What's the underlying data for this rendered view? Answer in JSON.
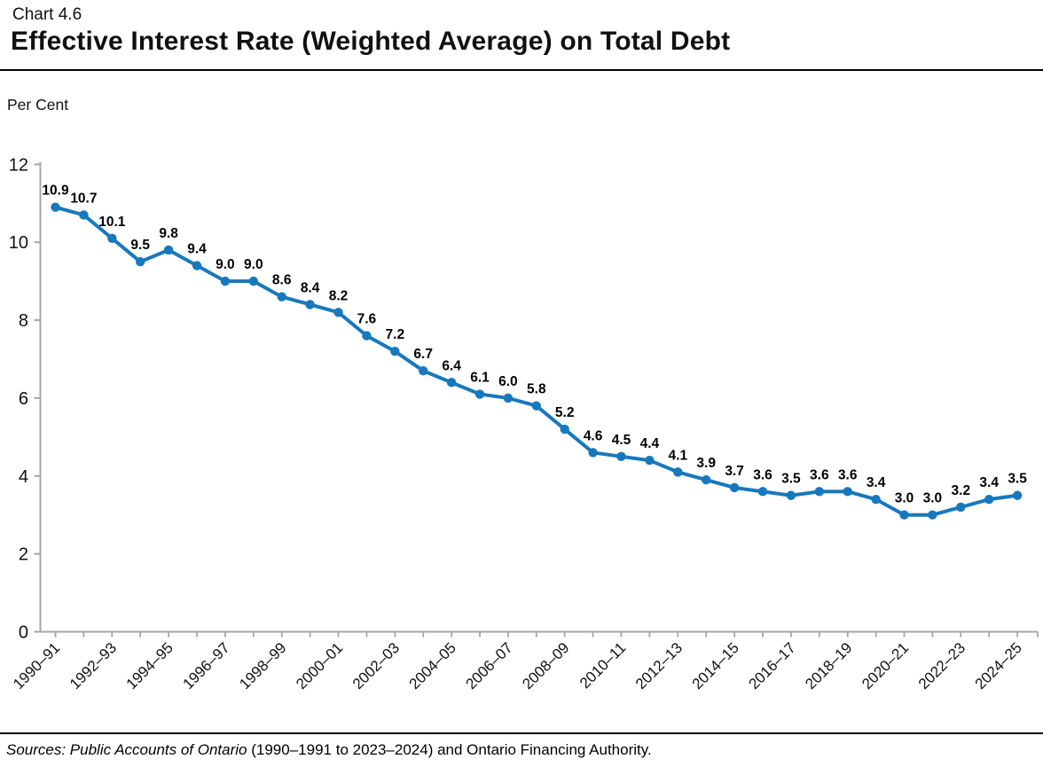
{
  "header": {
    "chart_number": "Chart 4.6"
  },
  "chart_data": {
    "type": "line",
    "title": "Effective Interest Rate (Weighted Average) on Total Debt",
    "ylabel": "Per Cent",
    "xlabel": "",
    "ylim": [
      0,
      12
    ],
    "yticks": [
      0,
      2,
      4,
      6,
      8,
      10,
      12
    ],
    "grid": false,
    "legend_position": "none",
    "data_labels": true,
    "x_label_every": 2,
    "categories": [
      "1990–91",
      "1991–92",
      "1992–93",
      "1993–94",
      "1994–95",
      "1995–96",
      "1996–97",
      "1997–98",
      "1998–99",
      "1999–00",
      "2000–01",
      "2001–02",
      "2002–03",
      "2003–04",
      "2004–05",
      "2005–06",
      "2006–07",
      "2007–08",
      "2008–09",
      "2009–10",
      "2010–11",
      "2011–12",
      "2012–13",
      "2013–14",
      "2014–15",
      "2015–16",
      "2016–17",
      "2017–18",
      "2018–19",
      "2019–20",
      "2020–21",
      "2021–22",
      "2022–23",
      "2023–24",
      "2024–25"
    ],
    "values": [
      10.9,
      10.7,
      10.1,
      9.5,
      9.8,
      9.4,
      9.0,
      9.0,
      8.6,
      8.4,
      8.2,
      7.6,
      7.2,
      6.7,
      6.4,
      6.1,
      6.0,
      5.8,
      5.2,
      4.6,
      4.5,
      4.4,
      4.1,
      3.9,
      3.7,
      3.6,
      3.5,
      3.6,
      3.6,
      3.4,
      3.0,
      3.0,
      3.2,
      3.4,
      3.5
    ],
    "series_color": "#1878bd",
    "axis_color": "#a6a6a6",
    "label_color": "#000000"
  },
  "footer": {
    "sources_italic": "Sources: Public Accounts of Ontario",
    "sources_rest": " (1990–1991 to 2023–2024) and Ontario Financing Authority."
  }
}
